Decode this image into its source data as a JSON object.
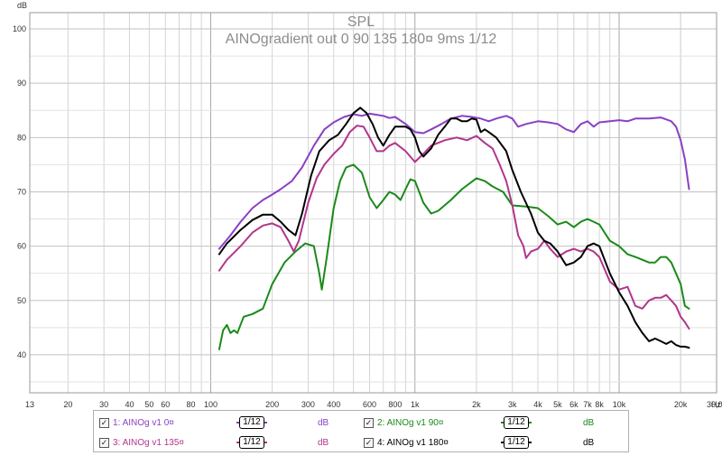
{
  "chart_data": {
    "type": "line",
    "title": "SPL",
    "subtitle": "AINOgradient out 0 90 135 180¤ 9ms 1/12",
    "y_unit_label": "dB",
    "x_unit_label": "Hz",
    "x_scale": "log",
    "xlim": [
      13,
      30000
    ],
    "ylim": [
      33,
      103
    ],
    "grid": true,
    "y_ticks": [
      "100",
      "90",
      "80",
      "70",
      "60",
      "50",
      "40"
    ],
    "x_ticks": [
      {
        "v": 13,
        "label": "13"
      },
      {
        "v": 20,
        "label": "20"
      },
      {
        "v": 30,
        "label": "30"
      },
      {
        "v": 40,
        "label": "40"
      },
      {
        "v": 50,
        "label": "50"
      },
      {
        "v": 60,
        "label": "60"
      },
      {
        "v": 80,
        "label": "80"
      },
      {
        "v": 100,
        "label": "100"
      },
      {
        "v": 200,
        "label": "200"
      },
      {
        "v": 300,
        "label": "300"
      },
      {
        "v": 400,
        "label": "400"
      },
      {
        "v": 600,
        "label": "600"
      },
      {
        "v": 800,
        "label": "800"
      },
      {
        "v": 1000,
        "label": "1k"
      },
      {
        "v": 2000,
        "label": "2k"
      },
      {
        "v": 3000,
        "label": "3k"
      },
      {
        "v": 4000,
        "label": "4k"
      },
      {
        "v": 5000,
        "label": "5k"
      },
      {
        "v": 6000,
        "label": "6k"
      },
      {
        "v": 7000,
        "label": "7k"
      },
      {
        "v": 8000,
        "label": "8k"
      },
      {
        "v": 10000,
        "label": "10k"
      },
      {
        "v": 20000,
        "label": "20k"
      },
      {
        "v": 30000,
        "label": "30,0k"
      }
    ],
    "series": [
      {
        "name": "1: AINOg v1 0¤",
        "color": "#8a3fc4",
        "points": [
          [
            110,
            59.5
          ],
          [
            125,
            62
          ],
          [
            140,
            64.5
          ],
          [
            160,
            67
          ],
          [
            180,
            68.5
          ],
          [
            200,
            69.5
          ],
          [
            220,
            70.5
          ],
          [
            250,
            72
          ],
          [
            280,
            74.5
          ],
          [
            320,
            78.5
          ],
          [
            360,
            81.5
          ],
          [
            400,
            82.8
          ],
          [
            450,
            83.8
          ],
          [
            500,
            84.3
          ],
          [
            550,
            84
          ],
          [
            600,
            84.4
          ],
          [
            650,
            84.2
          ],
          [
            700,
            84
          ],
          [
            750,
            83.6
          ],
          [
            800,
            83.8
          ],
          [
            900,
            82.5
          ],
          [
            1000,
            81
          ],
          [
            1100,
            80.8
          ],
          [
            1200,
            81.5
          ],
          [
            1350,
            82.5
          ],
          [
            1500,
            83.5
          ],
          [
            1700,
            84
          ],
          [
            1900,
            83.8
          ],
          [
            2100,
            83.5
          ],
          [
            2300,
            83
          ],
          [
            2500,
            83.5
          ],
          [
            2800,
            84
          ],
          [
            3000,
            83.5
          ],
          [
            3200,
            82
          ],
          [
            3500,
            82.5
          ],
          [
            4000,
            83
          ],
          [
            4500,
            82.8
          ],
          [
            5000,
            82.5
          ],
          [
            5500,
            81.5
          ],
          [
            6000,
            81
          ],
          [
            6500,
            82.5
          ],
          [
            7000,
            83
          ],
          [
            7500,
            82
          ],
          [
            8000,
            82.8
          ],
          [
            9000,
            83
          ],
          [
            10000,
            83.2
          ],
          [
            11000,
            83
          ],
          [
            12000,
            83.5
          ],
          [
            14000,
            83.5
          ],
          [
            16000,
            83.7
          ],
          [
            18000,
            83
          ],
          [
            19000,
            82
          ],
          [
            20000,
            79.5
          ],
          [
            21000,
            76
          ],
          [
            22000,
            70.5
          ]
        ]
      },
      {
        "name": "2: AINOg v1 90¤",
        "color": "#1a8a1a",
        "points": [
          [
            110,
            41
          ],
          [
            115,
            44.5
          ],
          [
            120,
            45.5
          ],
          [
            125,
            44
          ],
          [
            130,
            44.5
          ],
          [
            135,
            44
          ],
          [
            145,
            47
          ],
          [
            160,
            47.5
          ],
          [
            180,
            48.5
          ],
          [
            200,
            53
          ],
          [
            230,
            57
          ],
          [
            260,
            59
          ],
          [
            290,
            60.5
          ],
          [
            320,
            60
          ],
          [
            340,
            55
          ],
          [
            350,
            52
          ],
          [
            370,
            58
          ],
          [
            400,
            67
          ],
          [
            430,
            72
          ],
          [
            460,
            74.5
          ],
          [
            500,
            75
          ],
          [
            550,
            73.5
          ],
          [
            600,
            69
          ],
          [
            650,
            67
          ],
          [
            700,
            68.5
          ],
          [
            750,
            70
          ],
          [
            800,
            69.5
          ],
          [
            850,
            68.5
          ],
          [
            900,
            70.5
          ],
          [
            950,
            72.3
          ],
          [
            1000,
            72
          ],
          [
            1100,
            68
          ],
          [
            1200,
            66
          ],
          [
            1300,
            66.5
          ],
          [
            1500,
            68.5
          ],
          [
            1700,
            70.5
          ],
          [
            2000,
            72.5
          ],
          [
            2200,
            72
          ],
          [
            2400,
            71
          ],
          [
            2700,
            70
          ],
          [
            3000,
            67.5
          ],
          [
            3500,
            67.3
          ],
          [
            4000,
            67
          ],
          [
            4500,
            65.5
          ],
          [
            5000,
            64
          ],
          [
            5500,
            64.5
          ],
          [
            6000,
            63.5
          ],
          [
            6500,
            64.5
          ],
          [
            7000,
            65
          ],
          [
            7500,
            64.5
          ],
          [
            8000,
            64
          ],
          [
            9000,
            61
          ],
          [
            10000,
            60
          ],
          [
            11000,
            58.5
          ],
          [
            12000,
            58
          ],
          [
            13000,
            57.5
          ],
          [
            14000,
            57
          ],
          [
            15000,
            57
          ],
          [
            16000,
            58
          ],
          [
            17000,
            58
          ],
          [
            18000,
            57
          ],
          [
            20000,
            53
          ],
          [
            21000,
            49
          ],
          [
            22000,
            48.5
          ]
        ]
      },
      {
        "name": "3: AINOg v1 135¤",
        "color": "#b2358c",
        "points": [
          [
            110,
            55.5
          ],
          [
            120,
            57.5
          ],
          [
            140,
            60
          ],
          [
            160,
            62.5
          ],
          [
            180,
            63.8
          ],
          [
            200,
            64.2
          ],
          [
            220,
            63.5
          ],
          [
            240,
            61
          ],
          [
            255,
            59
          ],
          [
            270,
            61
          ],
          [
            300,
            68
          ],
          [
            330,
            72.5
          ],
          [
            360,
            75
          ],
          [
            400,
            77
          ],
          [
            440,
            78.5
          ],
          [
            480,
            81
          ],
          [
            520,
            82.2
          ],
          [
            560,
            82
          ],
          [
            600,
            80
          ],
          [
            650,
            77.5
          ],
          [
            700,
            77.5
          ],
          [
            750,
            78.5
          ],
          [
            800,
            79
          ],
          [
            900,
            77.5
          ],
          [
            1000,
            75.5
          ],
          [
            1100,
            77
          ],
          [
            1200,
            78.5
          ],
          [
            1400,
            79.5
          ],
          [
            1600,
            80
          ],
          [
            1800,
            79.5
          ],
          [
            2000,
            80.3
          ],
          [
            2200,
            79
          ],
          [
            2400,
            78
          ],
          [
            2600,
            75
          ],
          [
            2800,
            72
          ],
          [
            3000,
            67.5
          ],
          [
            3200,
            62
          ],
          [
            3400,
            60
          ],
          [
            3500,
            57.8
          ],
          [
            3700,
            59
          ],
          [
            4000,
            59.5
          ],
          [
            4300,
            61
          ],
          [
            4600,
            59.5
          ],
          [
            5000,
            58
          ],
          [
            5500,
            59
          ],
          [
            6000,
            59.5
          ],
          [
            6500,
            59
          ],
          [
            7000,
            59.5
          ],
          [
            7500,
            59
          ],
          [
            8000,
            58
          ],
          [
            9000,
            53.5
          ],
          [
            10000,
            52
          ],
          [
            11000,
            52.5
          ],
          [
            12000,
            49
          ],
          [
            13000,
            48.5
          ],
          [
            14000,
            50
          ],
          [
            15000,
            50.5
          ],
          [
            16000,
            50.5
          ],
          [
            17000,
            51
          ],
          [
            18000,
            50
          ],
          [
            19000,
            49
          ],
          [
            20000,
            47
          ],
          [
            21000,
            46
          ],
          [
            22000,
            44.8
          ]
        ]
      },
      {
        "name": "4: AINOg v1 180¤",
        "color": "#000000",
        "points": [
          [
            110,
            58.5
          ],
          [
            120,
            60.5
          ],
          [
            140,
            63
          ],
          [
            160,
            64.8
          ],
          [
            180,
            65.8
          ],
          [
            200,
            65.8
          ],
          [
            220,
            64.5
          ],
          [
            240,
            63
          ],
          [
            260,
            62
          ],
          [
            280,
            66
          ],
          [
            310,
            73
          ],
          [
            340,
            77.5
          ],
          [
            380,
            79.5
          ],
          [
            420,
            80.5
          ],
          [
            460,
            82.5
          ],
          [
            500,
            84.5
          ],
          [
            540,
            85.5
          ],
          [
            580,
            84.5
          ],
          [
            620,
            82.5
          ],
          [
            660,
            80
          ],
          [
            700,
            78.5
          ],
          [
            750,
            80.5
          ],
          [
            800,
            82
          ],
          [
            900,
            82
          ],
          [
            950,
            81.5
          ],
          [
            1000,
            80
          ],
          [
            1050,
            77.5
          ],
          [
            1100,
            76.5
          ],
          [
            1200,
            78
          ],
          [
            1300,
            80.5
          ],
          [
            1400,
            82
          ],
          [
            1500,
            83.5
          ],
          [
            1600,
            83.5
          ],
          [
            1700,
            83
          ],
          [
            1800,
            83
          ],
          [
            1900,
            83.5
          ],
          [
            2000,
            83.3
          ],
          [
            2100,
            81
          ],
          [
            2200,
            81.5
          ],
          [
            2300,
            81
          ],
          [
            2500,
            80
          ],
          [
            2800,
            77.5
          ],
          [
            3000,
            74
          ],
          [
            3300,
            70
          ],
          [
            3700,
            66
          ],
          [
            4000,
            62.5
          ],
          [
            4300,
            61
          ],
          [
            4600,
            60.5
          ],
          [
            5000,
            59
          ],
          [
            5500,
            56.5
          ],
          [
            6000,
            57
          ],
          [
            6500,
            58
          ],
          [
            7000,
            60
          ],
          [
            7500,
            60.5
          ],
          [
            8000,
            60
          ],
          [
            9000,
            55
          ],
          [
            10000,
            51.5
          ],
          [
            11000,
            49
          ],
          [
            12000,
            46
          ],
          [
            13000,
            44
          ],
          [
            14000,
            42.5
          ],
          [
            15000,
            43
          ],
          [
            16000,
            42.5
          ],
          [
            17000,
            42
          ],
          [
            18000,
            42.5
          ],
          [
            19000,
            41.8
          ],
          [
            20000,
            41.5
          ],
          [
            21000,
            41.5
          ],
          [
            22000,
            41.3
          ]
        ]
      }
    ]
  },
  "legend": {
    "items": [
      {
        "label": "1: AINOg v1 0¤",
        "smoothing": "1/12",
        "unit": "dB",
        "checked": "✓"
      },
      {
        "label": "2: AINOg v1 90¤",
        "smoothing": "1/12",
        "unit": "dB",
        "checked": "✓"
      },
      {
        "label": "3: AINOg v1 135¤",
        "smoothing": "1/12",
        "unit": "dB",
        "checked": "✓"
      },
      {
        "label": "4: AINOg v1 180¤",
        "smoothing": "1/12",
        "unit": "dB",
        "checked": "✓"
      }
    ]
  }
}
